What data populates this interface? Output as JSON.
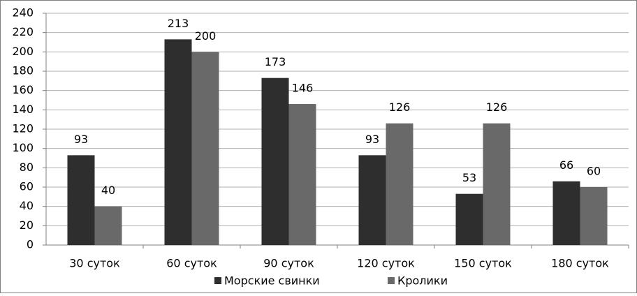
{
  "chart_data": {
    "type": "bar",
    "categories": [
      "30 суток",
      "60 суток",
      "90 суток",
      "120 суток",
      "150 суток",
      "180 суток"
    ],
    "series": [
      {
        "name": "Морские свинки",
        "color": "#2e2e2e",
        "values": [
          93,
          213,
          173,
          93,
          53,
          66
        ]
      },
      {
        "name": "Кролики",
        "color": "#696969",
        "values": [
          40,
          200,
          146,
          126,
          126,
          60
        ]
      }
    ],
    "ylim": [
      0,
      240
    ],
    "yticks": [
      0,
      20,
      40,
      60,
      80,
      100,
      120,
      140,
      160,
      180,
      200,
      220,
      240
    ],
    "grid": true,
    "legend": "bottom"
  }
}
